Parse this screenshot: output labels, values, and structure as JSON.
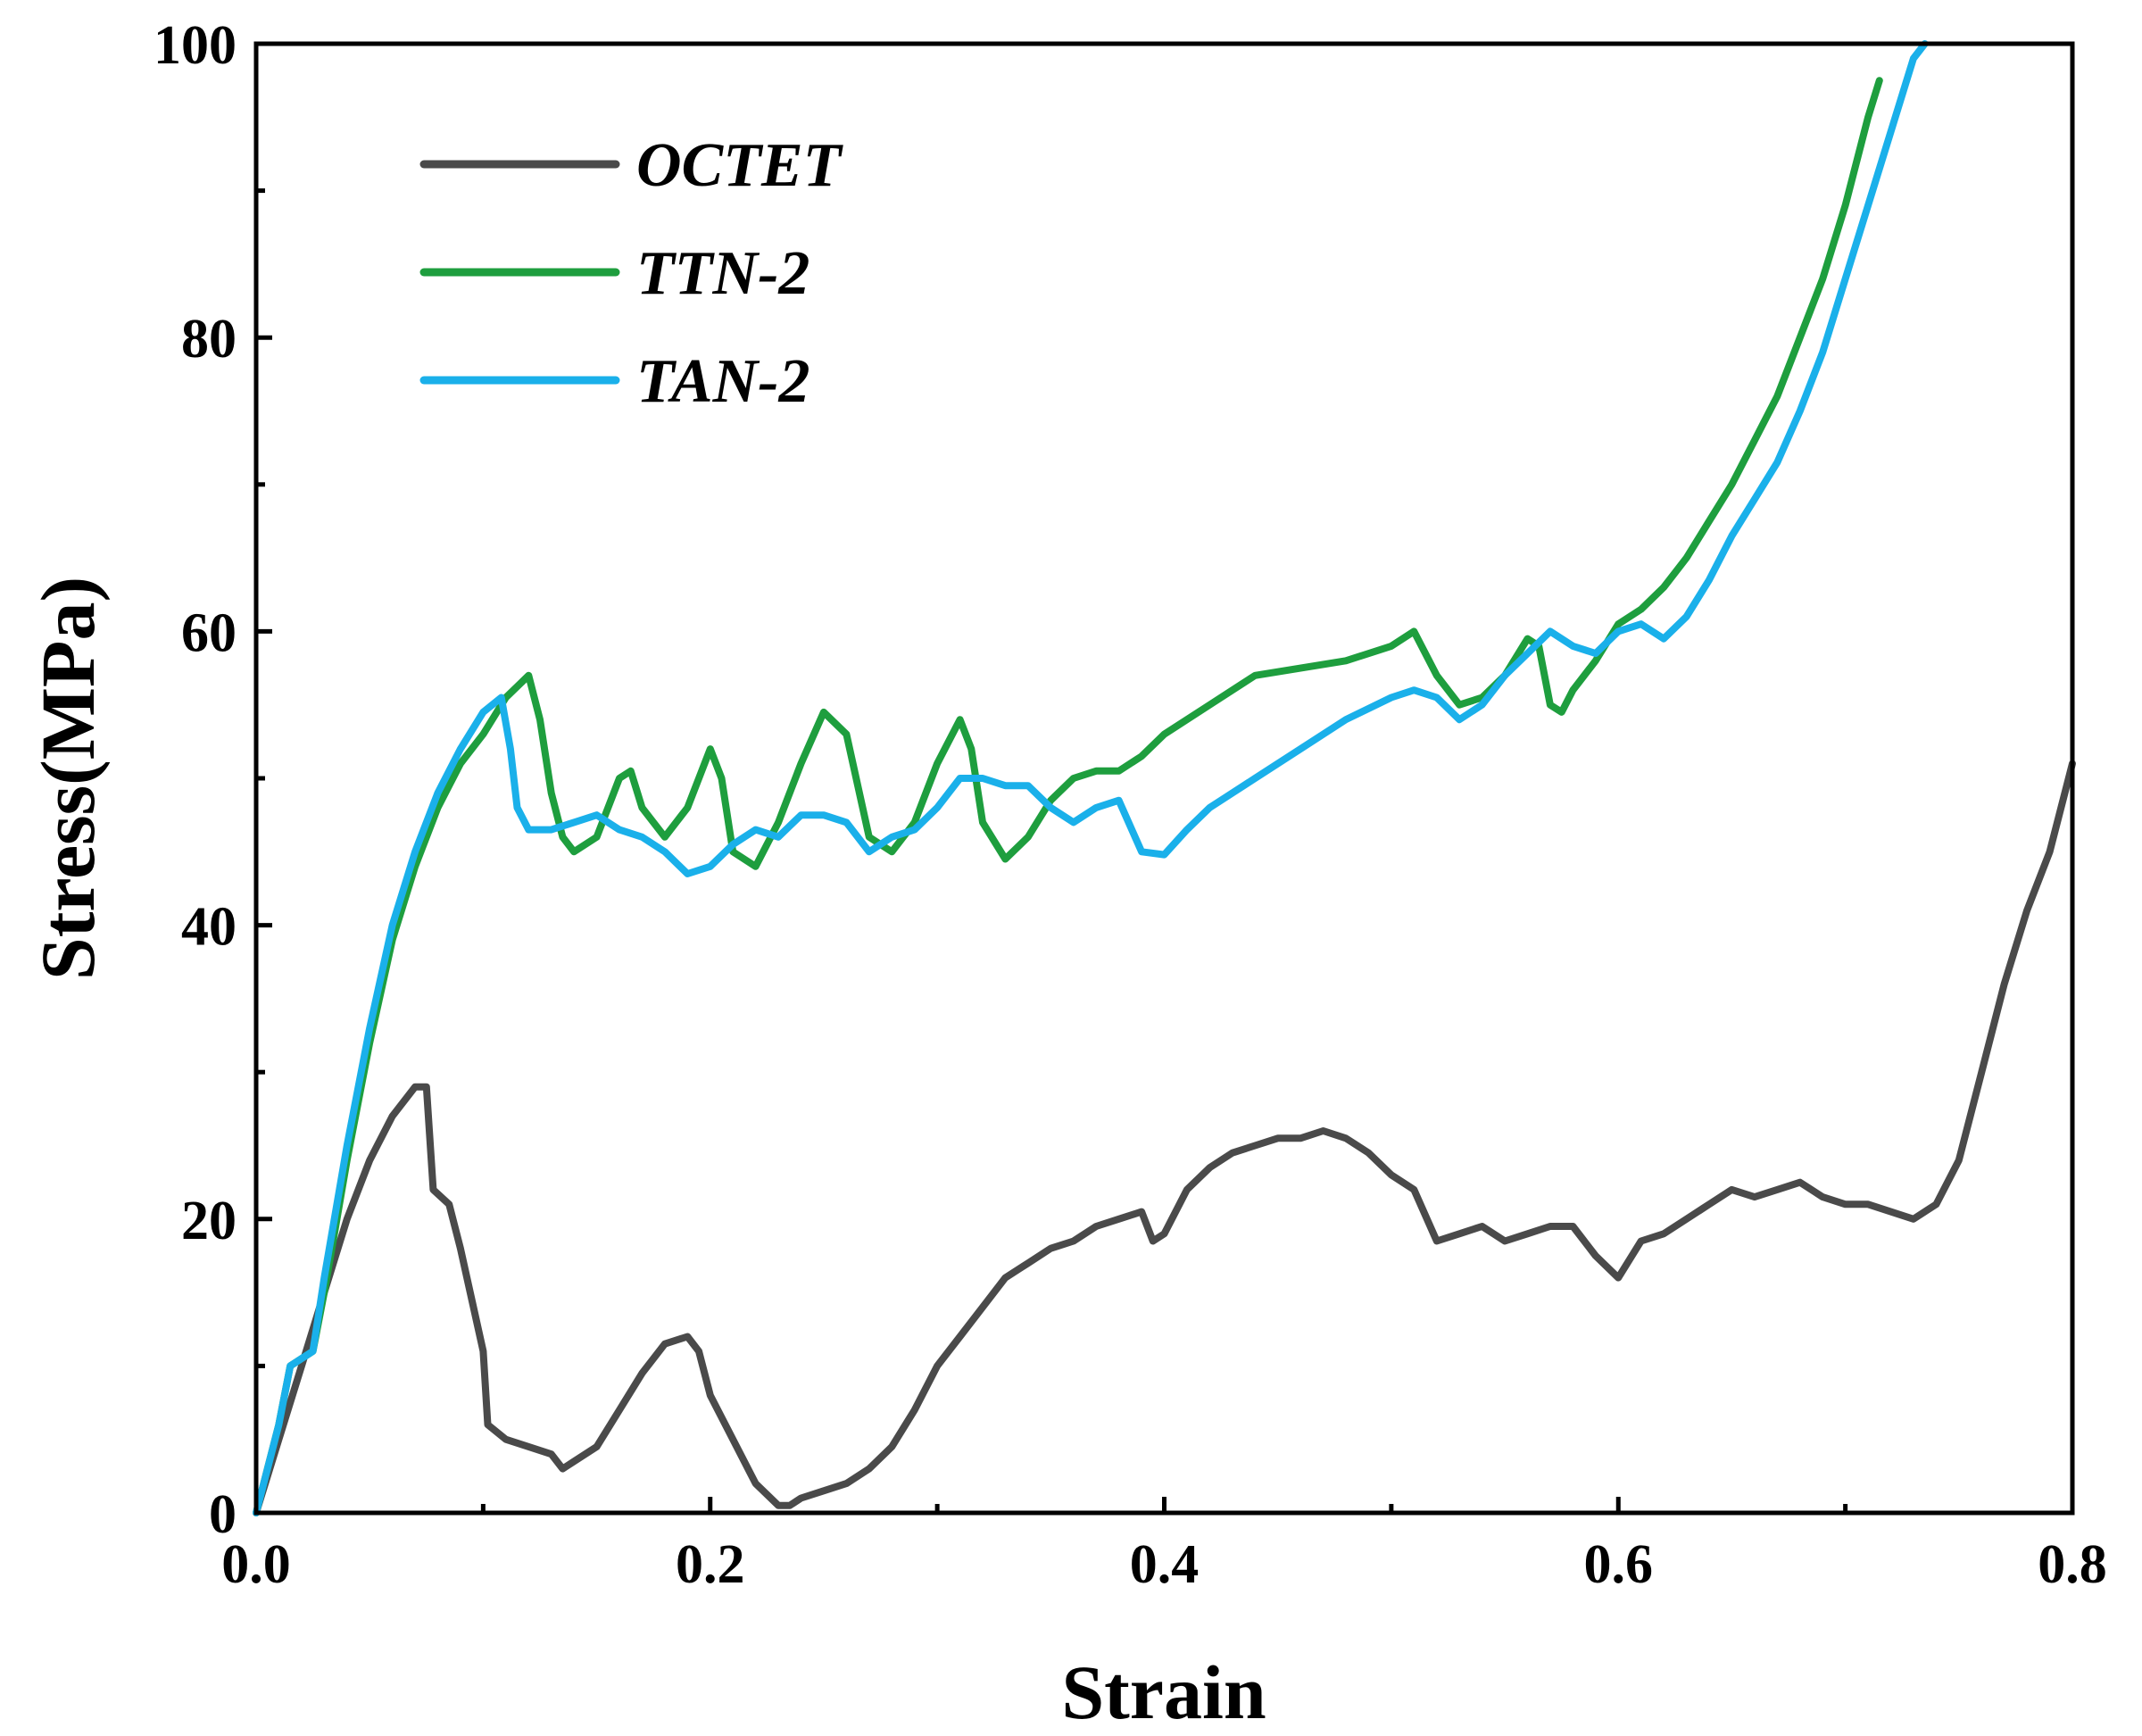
{
  "chart_data": {
    "type": "line",
    "title": "",
    "xlabel": "Strain",
    "ylabel": "Stress(MPa)",
    "xlim": [
      0,
      0.8
    ],
    "ylim": [
      0,
      100
    ],
    "xticks": [
      "0.0",
      "0.2",
      "0.4",
      "0.6",
      "0.8"
    ],
    "yticks": [
      "0",
      "20",
      "40",
      "60",
      "80",
      "100"
    ],
    "grid": false,
    "legend_position": "top-left",
    "series": [
      {
        "name": "OCTET",
        "color": "#4a4a4a",
        "points": [
          [
            0,
            0
          ],
          [
            0.01,
            5
          ],
          [
            0.02,
            10
          ],
          [
            0.03,
            15
          ],
          [
            0.04,
            20
          ],
          [
            0.05,
            24
          ],
          [
            0.06,
            27
          ],
          [
            0.07,
            29
          ],
          [
            0.075,
            29
          ],
          [
            0.078,
            22
          ],
          [
            0.085,
            21
          ],
          [
            0.09,
            18
          ],
          [
            0.1,
            11
          ],
          [
            0.102,
            6
          ],
          [
            0.11,
            5
          ],
          [
            0.12,
            4.5
          ],
          [
            0.13,
            4
          ],
          [
            0.135,
            3
          ],
          [
            0.14,
            3.5
          ],
          [
            0.15,
            4.5
          ],
          [
            0.16,
            7
          ],
          [
            0.17,
            9.5
          ],
          [
            0.18,
            11.5
          ],
          [
            0.19,
            12
          ],
          [
            0.195,
            11
          ],
          [
            0.2,
            8
          ],
          [
            0.21,
            5
          ],
          [
            0.22,
            2
          ],
          [
            0.23,
            0.5
          ],
          [
            0.235,
            0.5
          ],
          [
            0.24,
            1
          ],
          [
            0.25,
            1.5
          ],
          [
            0.26,
            2
          ],
          [
            0.27,
            3
          ],
          [
            0.28,
            4.5
          ],
          [
            0.29,
            7
          ],
          [
            0.3,
            10
          ],
          [
            0.31,
            12
          ],
          [
            0.32,
            14
          ],
          [
            0.33,
            16
          ],
          [
            0.34,
            17
          ],
          [
            0.35,
            18
          ],
          [
            0.36,
            18.5
          ],
          [
            0.37,
            19.5
          ],
          [
            0.38,
            20
          ],
          [
            0.39,
            20.5
          ],
          [
            0.395,
            18.5
          ],
          [
            0.4,
            19
          ],
          [
            0.41,
            22
          ],
          [
            0.42,
            23.5
          ],
          [
            0.43,
            24.5
          ],
          [
            0.44,
            25
          ],
          [
            0.45,
            25.5
          ],
          [
            0.46,
            25.5
          ],
          [
            0.47,
            26
          ],
          [
            0.48,
            25.5
          ],
          [
            0.49,
            24.5
          ],
          [
            0.5,
            23
          ],
          [
            0.51,
            22
          ],
          [
            0.52,
            18.5
          ],
          [
            0.53,
            19
          ],
          [
            0.54,
            19.5
          ],
          [
            0.55,
            18.5
          ],
          [
            0.56,
            19
          ],
          [
            0.57,
            19.5
          ],
          [
            0.58,
            19.5
          ],
          [
            0.59,
            17.5
          ],
          [
            0.6,
            16
          ],
          [
            0.61,
            18.5
          ],
          [
            0.62,
            19
          ],
          [
            0.63,
            20
          ],
          [
            0.64,
            21
          ],
          [
            0.65,
            22
          ],
          [
            0.66,
            21.5
          ],
          [
            0.67,
            22
          ],
          [
            0.68,
            22.5
          ],
          [
            0.69,
            21.5
          ],
          [
            0.7,
            21
          ],
          [
            0.71,
            21
          ],
          [
            0.72,
            20.5
          ],
          [
            0.73,
            20
          ],
          [
            0.74,
            21
          ],
          [
            0.75,
            24
          ],
          [
            0.76,
            30
          ],
          [
            0.77,
            36
          ],
          [
            0.78,
            41
          ],
          [
            0.79,
            45
          ],
          [
            0.8,
            51
          ]
        ]
      },
      {
        "name": "TTN-2",
        "color": "#1e9e3e",
        "points": [
          [
            0,
            0
          ],
          [
            0.01,
            6
          ],
          [
            0.015,
            10
          ],
          [
            0.025,
            11
          ],
          [
            0.03,
            15
          ],
          [
            0.04,
            24
          ],
          [
            0.05,
            32
          ],
          [
            0.06,
            39
          ],
          [
            0.07,
            44
          ],
          [
            0.08,
            48
          ],
          [
            0.09,
            51
          ],
          [
            0.1,
            53
          ],
          [
            0.11,
            55.5
          ],
          [
            0.12,
            57
          ],
          [
            0.125,
            54
          ],
          [
            0.13,
            49
          ],
          [
            0.135,
            46
          ],
          [
            0.14,
            45
          ],
          [
            0.15,
            46
          ],
          [
            0.16,
            50
          ],
          [
            0.165,
            50.5
          ],
          [
            0.17,
            48
          ],
          [
            0.18,
            46
          ],
          [
            0.19,
            48
          ],
          [
            0.2,
            52
          ],
          [
            0.205,
            50
          ],
          [
            0.21,
            45
          ],
          [
            0.22,
            44
          ],
          [
            0.23,
            47
          ],
          [
            0.24,
            51
          ],
          [
            0.25,
            54.5
          ],
          [
            0.26,
            53
          ],
          [
            0.27,
            46
          ],
          [
            0.28,
            45
          ],
          [
            0.29,
            47
          ],
          [
            0.3,
            51
          ],
          [
            0.31,
            54
          ],
          [
            0.315,
            52
          ],
          [
            0.32,
            47
          ],
          [
            0.33,
            44.5
          ],
          [
            0.34,
            46
          ],
          [
            0.35,
            48.5
          ],
          [
            0.36,
            50
          ],
          [
            0.37,
            50.5
          ],
          [
            0.38,
            50.5
          ],
          [
            0.39,
            51.5
          ],
          [
            0.4,
            53
          ],
          [
            0.42,
            55
          ],
          [
            0.44,
            57
          ],
          [
            0.46,
            57.5
          ],
          [
            0.48,
            58
          ],
          [
            0.5,
            59
          ],
          [
            0.51,
            60
          ],
          [
            0.52,
            57
          ],
          [
            0.53,
            55
          ],
          [
            0.54,
            55.5
          ],
          [
            0.55,
            57
          ],
          [
            0.56,
            59.5
          ],
          [
            0.565,
            59
          ],
          [
            0.57,
            55
          ],
          [
            0.575,
            54.5
          ],
          [
            0.58,
            56
          ],
          [
            0.59,
            58
          ],
          [
            0.6,
            60.5
          ],
          [
            0.61,
            61.5
          ],
          [
            0.62,
            63
          ],
          [
            0.63,
            65
          ],
          [
            0.64,
            67.5
          ],
          [
            0.65,
            70
          ],
          [
            0.66,
            73
          ],
          [
            0.67,
            76
          ],
          [
            0.68,
            80
          ],
          [
            0.69,
            84
          ],
          [
            0.7,
            89
          ],
          [
            0.71,
            95
          ],
          [
            0.715,
            97.5
          ]
        ]
      },
      {
        "name": "TAN-2",
        "color": "#1ab0ea",
        "points": [
          [
            0,
            0
          ],
          [
            0.01,
            6
          ],
          [
            0.015,
            10
          ],
          [
            0.025,
            11
          ],
          [
            0.03,
            16
          ],
          [
            0.04,
            25
          ],
          [
            0.05,
            33
          ],
          [
            0.06,
            40
          ],
          [
            0.07,
            45
          ],
          [
            0.08,
            49
          ],
          [
            0.09,
            52
          ],
          [
            0.1,
            54.5
          ],
          [
            0.108,
            55.5
          ],
          [
            0.112,
            52
          ],
          [
            0.115,
            48
          ],
          [
            0.12,
            46.5
          ],
          [
            0.13,
            46.5
          ],
          [
            0.14,
            47
          ],
          [
            0.15,
            47.5
          ],
          [
            0.16,
            46.5
          ],
          [
            0.17,
            46
          ],
          [
            0.18,
            45
          ],
          [
            0.19,
            43.5
          ],
          [
            0.2,
            44
          ],
          [
            0.21,
            45.5
          ],
          [
            0.22,
            46.5
          ],
          [
            0.23,
            46
          ],
          [
            0.24,
            47.5
          ],
          [
            0.25,
            47.5
          ],
          [
            0.26,
            47
          ],
          [
            0.27,
            45
          ],
          [
            0.28,
            46
          ],
          [
            0.29,
            46.5
          ],
          [
            0.3,
            48
          ],
          [
            0.31,
            50
          ],
          [
            0.32,
            50
          ],
          [
            0.33,
            49.5
          ],
          [
            0.34,
            49.5
          ],
          [
            0.35,
            48
          ],
          [
            0.36,
            47
          ],
          [
            0.37,
            48
          ],
          [
            0.38,
            48.5
          ],
          [
            0.39,
            45
          ],
          [
            0.4,
            44.8
          ],
          [
            0.41,
            46.5
          ],
          [
            0.42,
            48
          ],
          [
            0.44,
            50
          ],
          [
            0.46,
            52
          ],
          [
            0.48,
            54
          ],
          [
            0.5,
            55.5
          ],
          [
            0.51,
            56
          ],
          [
            0.52,
            55.5
          ],
          [
            0.53,
            54
          ],
          [
            0.54,
            55
          ],
          [
            0.55,
            57
          ],
          [
            0.56,
            58.5
          ],
          [
            0.57,
            60
          ],
          [
            0.58,
            59
          ],
          [
            0.59,
            58.5
          ],
          [
            0.6,
            60
          ],
          [
            0.61,
            60.5
          ],
          [
            0.62,
            59.5
          ],
          [
            0.63,
            61
          ],
          [
            0.64,
            63.5
          ],
          [
            0.65,
            66.5
          ],
          [
            0.66,
            69
          ],
          [
            0.67,
            71.5
          ],
          [
            0.68,
            75
          ],
          [
            0.69,
            79
          ],
          [
            0.7,
            84
          ],
          [
            0.71,
            89
          ],
          [
            0.72,
            94
          ],
          [
            0.73,
            99
          ],
          [
            0.735,
            100
          ]
        ]
      }
    ]
  }
}
